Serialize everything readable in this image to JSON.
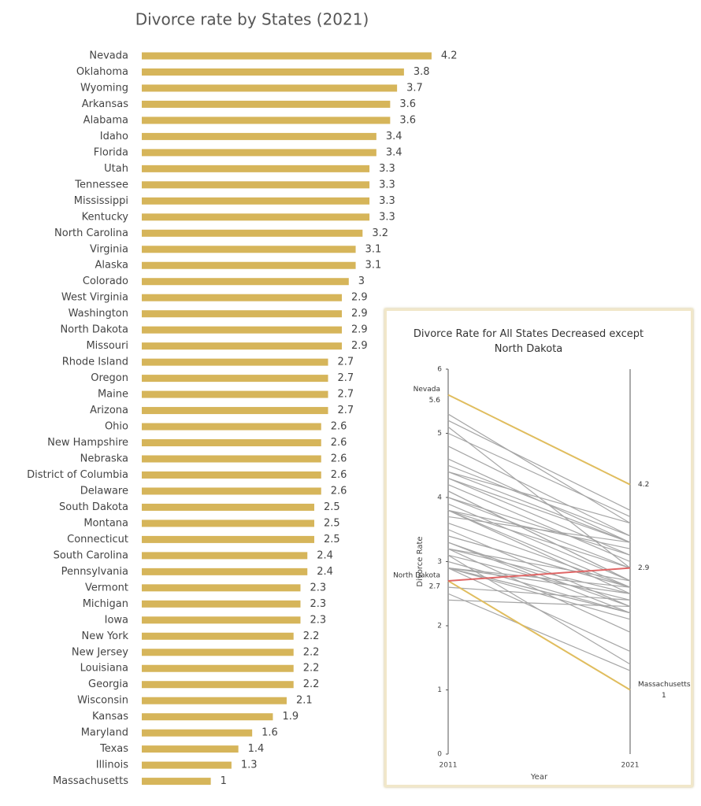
{
  "chart_data": [
    {
      "type": "bar",
      "orientation": "horizontal",
      "title": "Divorce rate by States (2021)",
      "categories": [
        "Nevada",
        "Oklahoma",
        "Wyoming",
        "Arkansas",
        "Alabama",
        "Idaho",
        "Florida",
        "Utah",
        "Tennessee",
        "Mississippi",
        "Kentucky",
        "North Carolina",
        "Virginia",
        "Alaska",
        "Colorado",
        "West Virginia",
        "Washington",
        "North Dakota",
        "Missouri",
        "Rhode Island",
        "Oregon",
        "Maine",
        "Arizona",
        "Ohio",
        "New Hampshire",
        "Nebraska",
        "District of Columbia",
        "Delaware",
        "South Dakota",
        "Montana",
        "Connecticut",
        "South Carolina",
        "Pennsylvania",
        "Vermont",
        "Michigan",
        "Iowa",
        "New York",
        "New Jersey",
        "Louisiana",
        "Georgia",
        "Wisconsin",
        "Kansas",
        "Maryland",
        "Texas",
        "Illinois",
        "Massachusetts"
      ],
      "values": [
        4.2,
        3.8,
        3.7,
        3.6,
        3.6,
        3.4,
        3.4,
        3.3,
        3.3,
        3.3,
        3.3,
        3.2,
        3.1,
        3.1,
        3,
        2.9,
        2.9,
        2.9,
        2.9,
        2.7,
        2.7,
        2.7,
        2.7,
        2.6,
        2.6,
        2.6,
        2.6,
        2.6,
        2.5,
        2.5,
        2.5,
        2.4,
        2.4,
        2.3,
        2.3,
        2.3,
        2.2,
        2.2,
        2.2,
        2.2,
        2.1,
        1.9,
        1.6,
        1.4,
        1.3,
        1
      ],
      "color": "#d6b55a"
    },
    {
      "type": "slope",
      "title": "Divorce Rate for All States Decreased except North Dakota",
      "x_label": "Year",
      "y_label": "Divorce Rate",
      "x": [
        2011,
        2021
      ],
      "xlim": [
        2011,
        2021
      ],
      "xticks": [
        2011,
        2021
      ],
      "ylim": [
        0,
        6
      ],
      "yticks": [
        0,
        1,
        2,
        3,
        4,
        5,
        6
      ],
      "series": [
        {
          "color": "#a6a6a6",
          "values": [
            5.2,
            3.8
          ]
        },
        {
          "color": "#a6a6a6",
          "values": [
            5.0,
            3.7
          ]
        },
        {
          "color": "#a6a6a6",
          "values": [
            5.3,
            3.6
          ]
        },
        {
          "color": "#a6a6a6",
          "values": [
            4.4,
            3.6
          ]
        },
        {
          "color": "#a6a6a6",
          "values": [
            4.8,
            3.4
          ]
        },
        {
          "color": "#a6a6a6",
          "values": [
            4.5,
            3.4
          ]
        },
        {
          "color": "#a6a6a6",
          "values": [
            3.7,
            3.3
          ]
        },
        {
          "color": "#a6a6a6",
          "values": [
            4.4,
            3.3
          ]
        },
        {
          "color": "#a6a6a6",
          "values": [
            4.3,
            3.3
          ]
        },
        {
          "color": "#a6a6a6",
          "values": [
            4.6,
            3.3
          ]
        },
        {
          "color": "#a6a6a6",
          "values": [
            3.8,
            3.2
          ]
        },
        {
          "color": "#a6a6a6",
          "values": [
            4.0,
            3.1
          ]
        },
        {
          "color": "#a6a6a6",
          "values": [
            4.3,
            3.1
          ]
        },
        {
          "color": "#a6a6a6",
          "values": [
            4.2,
            3
          ]
        },
        {
          "color": "#a6a6a6",
          "values": [
            5.1,
            2.9
          ]
        },
        {
          "color": "#a6a6a6",
          "values": [
            3.8,
            2.9
          ]
        },
        {
          "color": "#a6a6a6",
          "values": [
            4.0,
            2.9
          ]
        },
        {
          "color": "#a6a6a6",
          "values": [
            3.2,
            2.7
          ]
        },
        {
          "color": "#a6a6a6",
          "values": [
            4.1,
            2.7
          ]
        },
        {
          "color": "#a6a6a6",
          "values": [
            4.1,
            2.7
          ]
        },
        {
          "color": "#a6a6a6",
          "values": [
            3.9,
            2.7
          ]
        },
        {
          "color": "#a6a6a6",
          "values": [
            3.4,
            2.6
          ]
        },
        {
          "color": "#a6a6a6",
          "values": [
            3.8,
            2.6
          ]
        },
        {
          "color": "#a6a6a6",
          "values": [
            3.4,
            2.6
          ]
        },
        {
          "color": "#a6a6a6",
          "values": [
            2.9,
            2.6
          ]
        },
        {
          "color": "#a6a6a6",
          "values": [
            3.6,
            2.6
          ]
        },
        {
          "color": "#a6a6a6",
          "values": [
            3.2,
            2.5
          ]
        },
        {
          "color": "#a6a6a6",
          "values": [
            3.8,
            2.5
          ]
        },
        {
          "color": "#a6a6a6",
          "values": [
            2.9,
            2.5
          ]
        },
        {
          "color": "#a6a6a6",
          "values": [
            3.1,
            2.4
          ]
        },
        {
          "color": "#a6a6a6",
          "values": [
            2.6,
            2.4
          ]
        },
        {
          "color": "#a6a6a6",
          "values": [
            3.5,
            2.3
          ]
        },
        {
          "color": "#a6a6a6",
          "values": [
            3.3,
            2.3
          ]
        },
        {
          "color": "#a6a6a6",
          "values": [
            2.4,
            2.3
          ]
        },
        {
          "color": "#a6a6a6",
          "values": [
            2.9,
            2.2
          ]
        },
        {
          "color": "#a6a6a6",
          "values": [
            2.9,
            2.2
          ]
        },
        {
          "color": "#a6a6a6",
          "values": [
            3.0,
            2.2
          ]
        },
        {
          "color": "#a6a6a6",
          "values": [
            3.3,
            2.2
          ]
        },
        {
          "color": "#a6a6a6",
          "values": [
            2.9,
            2.1
          ]
        },
        {
          "color": "#a6a6a6",
          "values": [
            3.2,
            1.9
          ]
        },
        {
          "color": "#a6a6a6",
          "values": [
            2.9,
            1.6
          ]
        },
        {
          "color": "#a6a6a6",
          "values": [
            3.1,
            1.4
          ]
        },
        {
          "color": "#a6a6a6",
          "values": [
            2.5,
            1.3
          ]
        },
        {
          "name": "Nevada",
          "color": "#e0bd5e",
          "values": [
            5.6,
            4.2
          ],
          "show_value_labels": [
            true,
            true
          ]
        },
        {
          "name": "Massachusetts",
          "color": "#e0bd5e",
          "values": [
            2.7,
            1
          ],
          "show_value_labels": [
            false,
            true
          ]
        },
        {
          "name": "North Dakota",
          "color": "#e06666",
          "values": [
            2.7,
            2.9
          ],
          "show_value_labels": [
            true,
            true
          ]
        }
      ]
    }
  ]
}
